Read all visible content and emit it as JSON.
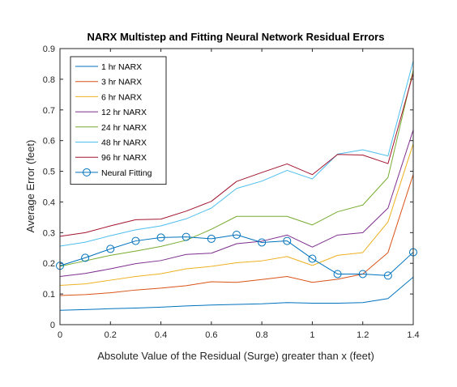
{
  "chart_data": {
    "type": "line",
    "title": "NARX Multistep and Fitting Neural Network Residual Errors",
    "xlabel": "Absolute Value of the Residual (Surge) greater than x (feet)",
    "ylabel": "Average Error (feet)",
    "xlim": [
      0,
      1.4
    ],
    "ylim": [
      0,
      0.9
    ],
    "xticks": [
      0,
      0.2,
      0.4,
      0.6,
      0.8,
      1,
      1.2,
      1.4
    ],
    "xtick_labels": [
      "0",
      "0.2",
      "0.4",
      "0.6",
      "0.8",
      "1",
      "1.2",
      "1.4"
    ],
    "yticks": [
      0,
      0.1,
      0.2,
      0.3,
      0.4,
      0.5,
      0.6,
      0.7,
      0.8,
      0.9
    ],
    "ytick_labels": [
      "0",
      "0.1",
      "0.2",
      "0.3",
      "0.4",
      "0.5",
      "0.6",
      "0.7",
      "0.8",
      "0.9"
    ],
    "grid": false,
    "legend_position": "top-left",
    "x": [
      0,
      0.1,
      0.2,
      0.3,
      0.4,
      0.5,
      0.6,
      0.7,
      0.8,
      0.9,
      1.0,
      1.1,
      1.2,
      1.3,
      1.4
    ],
    "series": [
      {
        "name": "1 hr NARX",
        "color": "#0072BD",
        "marker": "none",
        "values": [
          0.047,
          0.049,
          0.052,
          0.054,
          0.057,
          0.061,
          0.064,
          0.066,
          0.068,
          0.072,
          0.07,
          0.07,
          0.072,
          0.085,
          0.155
        ]
      },
      {
        "name": "3 hr NARX",
        "color": "#D95319",
        "marker": "none",
        "values": [
          0.095,
          0.098,
          0.104,
          0.113,
          0.119,
          0.127,
          0.14,
          0.138,
          0.147,
          0.157,
          0.138,
          0.148,
          0.165,
          0.235,
          0.49
        ]
      },
      {
        "name": "6 hr NARX",
        "color": "#EDB120",
        "marker": "none",
        "values": [
          0.128,
          0.133,
          0.145,
          0.157,
          0.166,
          0.182,
          0.19,
          0.202,
          0.208,
          0.222,
          0.193,
          0.226,
          0.235,
          0.335,
          0.59
        ]
      },
      {
        "name": "12 hr NARX",
        "color": "#7E2F8E",
        "marker": "none",
        "values": [
          0.157,
          0.167,
          0.182,
          0.199,
          0.209,
          0.229,
          0.233,
          0.264,
          0.272,
          0.292,
          0.253,
          0.292,
          0.3,
          0.38,
          0.635
        ]
      },
      {
        "name": "24 hr NARX",
        "color": "#77AC30",
        "marker": "none",
        "values": [
          0.19,
          0.208,
          0.226,
          0.24,
          0.255,
          0.275,
          0.311,
          0.353,
          0.353,
          0.353,
          0.325,
          0.368,
          0.39,
          0.48,
          0.83
        ]
      },
      {
        "name": "48 hr NARX",
        "color": "#4DBEEE",
        "marker": "none",
        "values": [
          0.256,
          0.269,
          0.29,
          0.309,
          0.322,
          0.345,
          0.38,
          0.444,
          0.468,
          0.503,
          0.475,
          0.556,
          0.57,
          0.55,
          0.86
        ]
      },
      {
        "name": "96 hr NARX",
        "color": "#A2142F",
        "marker": "none",
        "values": [
          0.288,
          0.3,
          0.322,
          0.342,
          0.344,
          0.37,
          0.402,
          0.467,
          0.496,
          0.524,
          0.489,
          0.555,
          0.553,
          0.525,
          0.82
        ]
      },
      {
        "name": "Neural Fitting",
        "color": "#0072BD",
        "marker": "circle",
        "values": [
          0.192,
          0.218,
          0.247,
          0.273,
          0.284,
          0.286,
          0.28,
          0.293,
          0.268,
          0.273,
          0.215,
          0.165,
          0.165,
          0.16,
          0.236
        ]
      }
    ]
  }
}
